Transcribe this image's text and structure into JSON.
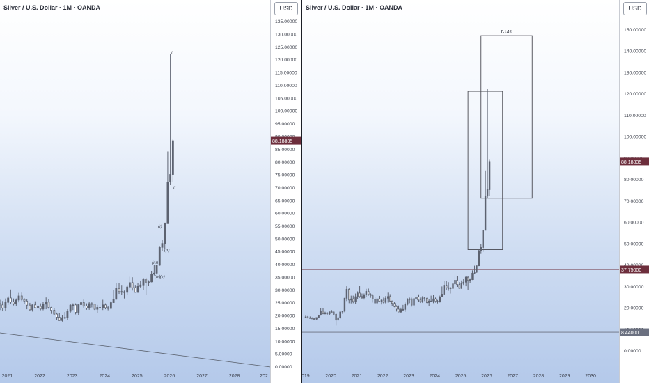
{
  "panes": [
    {
      "title": "Silver / U.S. Dollar · 1M · OANDA",
      "currency": "USD",
      "y_ticks": [
        "0.00000",
        "5.00000",
        "10.00000",
        "15.00000",
        "20.00000",
        "25.00000",
        "30.00000",
        "35.00000",
        "40.00000",
        "45.00000",
        "50.00000",
        "55.00000",
        "60.00000",
        "65.00000",
        "70.00000",
        "75.00000",
        "80.00000",
        "85.00000",
        "90.00000",
        "95.00000",
        "100.00000",
        "105.00000",
        "110.00000",
        "115.00000",
        "120.00000",
        "125.00000",
        "130.00000",
        "135.00000"
      ],
      "x_ticks": [
        "2021",
        "2022",
        "2023",
        "2024",
        "2025",
        "2026",
        "2027",
        "2028",
        "202"
      ],
      "price_label": "88.18835",
      "annotations": [
        "i",
        "ii",
        "(i)",
        "(ii)",
        "(iii)",
        "(iv)",
        "(v)"
      ]
    },
    {
      "title": "Silver / U.S. Dollar · 1M · OANDA",
      "currency": "USD",
      "y_ticks": [
        "0.00000",
        "10.00000",
        "20.00000",
        "30.00000",
        "40.00000",
        "50.00000",
        "60.00000",
        "70.00000",
        "80.00000",
        "90.00000",
        "100.00000",
        "110.00000",
        "120.00000",
        "130.00000",
        "140.00000",
        "150.00000"
      ],
      "x_ticks": [
        "019",
        "2020",
        "2021",
        "2022",
        "2023",
        "2024",
        "2025",
        "2026",
        "2027",
        "2028",
        "2029",
        "2030"
      ],
      "price_label": "88.18835",
      "level_labels": [
        "37.75000",
        "8.44000"
      ],
      "box_label": "T-145"
    }
  ],
  "colors": {
    "candle": "#5c6270",
    "price_tag": "#6d2e3c",
    "level_line": "#6d2e3c",
    "trend_line": "#555b66",
    "box_border": "#4a4a52"
  },
  "chart_data": [
    {
      "type": "candlestick",
      "title": "Silver / U.S. Dollar · 1M · OANDA",
      "ylabel": "USD",
      "ylim": [
        0,
        135
      ],
      "xlim": [
        2020.75,
        2028.95
      ],
      "last_price": 88.18835,
      "series": [
        {
          "name": "",
          "x": [
            2020.75,
            2020.83,
            2020.92,
            2021.0,
            2021.08,
            2021.17,
            2021.25,
            2021.33,
            2021.42,
            2021.5,
            2021.58,
            2021.67,
            2021.75,
            2021.83,
            2021.92,
            2022.0,
            2022.08,
            2022.17,
            2022.25,
            2022.33,
            2022.42,
            2022.5,
            2022.58,
            2022.67,
            2022.75,
            2022.83,
            2022.92,
            2023.0,
            2023.08,
            2023.17,
            2023.25,
            2023.33,
            2023.42,
            2023.5,
            2023.58,
            2023.67,
            2023.75,
            2023.83,
            2023.92,
            2024.0,
            2024.08,
            2024.17,
            2024.25,
            2024.33,
            2024.42,
            2024.5,
            2024.58,
            2024.67,
            2024.75,
            2024.83,
            2024.92,
            2025.0,
            2025.08,
            2025.17,
            2025.25,
            2025.33,
            2025.42,
            2025.5,
            2025.58,
            2025.67,
            2025.75,
            2025.83,
            2025.92,
            2026.0,
            2026.08
          ],
          "open": [
            24.5,
            24.0,
            22.8,
            25.0,
            26.7,
            25.1,
            24.5,
            25.9,
            27.5,
            26.1,
            25.5,
            23.9,
            22.1,
            24.0,
            22.9,
            23.4,
            22.4,
            24.3,
            25.1,
            23.0,
            21.9,
            20.4,
            19.2,
            17.9,
            19.0,
            19.1,
            21.5,
            23.9,
            24.0,
            21.1,
            24.1,
            24.9,
            23.5,
            22.8,
            24.5,
            24.3,
            22.3,
            23.0,
            23.0,
            24.0,
            22.9,
            22.6,
            24.9,
            26.2,
            30.4,
            29.2,
            29.1,
            28.9,
            31.0,
            32.7,
            30.7,
            28.9,
            31.2,
            31.8,
            34.1,
            32.6,
            33.0,
            36.0,
            36.4,
            39.5,
            46.5,
            48.0,
            56.0,
            72.0,
            75.0
          ],
          "high": [
            26.0,
            25.5,
            26.5,
            27.5,
            30.0,
            26.5,
            26.5,
            28.7,
            28.8,
            26.6,
            26.3,
            24.8,
            24.2,
            25.4,
            24.0,
            24.6,
            25.3,
            26.9,
            26.2,
            23.2,
            22.6,
            21.0,
            20.9,
            19.9,
            21.2,
            22.3,
            24.3,
            24.6,
            24.6,
            24.0,
            26.1,
            26.1,
            24.6,
            25.3,
            25.0,
            24.5,
            24.0,
            25.5,
            26.0,
            24.6,
            23.5,
            25.5,
            29.8,
            32.5,
            32.5,
            31.8,
            29.6,
            31.8,
            35.0,
            34.8,
            31.8,
            32.6,
            33.5,
            34.5,
            34.6,
            33.6,
            37.3,
            39.5,
            39.5,
            47.0,
            49.5,
            56.0,
            84.0,
            122.0,
            89.0
          ],
          "low": [
            22.0,
            21.5,
            21.5,
            24.0,
            24.5,
            23.8,
            23.7,
            25.0,
            25.5,
            24.5,
            22.3,
            21.6,
            21.4,
            22.8,
            21.4,
            21.9,
            21.9,
            22.3,
            22.5,
            20.5,
            20.1,
            18.1,
            17.8,
            17.5,
            18.5,
            18.0,
            21.0,
            22.0,
            20.3,
            19.9,
            23.5,
            22.6,
            22.1,
            22.1,
            23.0,
            22.0,
            20.7,
            22.5,
            22.0,
            22.3,
            21.9,
            22.3,
            24.8,
            26.0,
            28.3,
            27.8,
            26.5,
            28.0,
            30.0,
            29.6,
            28.8,
            28.7,
            30.5,
            29.9,
            28.0,
            31.5,
            32.8,
            35.5,
            36.2,
            39.3,
            45.0,
            46.0,
            56.0,
            71.0,
            72.0
          ],
          "close": [
            24.0,
            22.8,
            25.0,
            26.7,
            25.1,
            24.5,
            25.9,
            27.5,
            26.1,
            25.5,
            23.9,
            22.1,
            24.0,
            22.9,
            23.4,
            22.4,
            24.3,
            25.1,
            23.0,
            21.9,
            20.4,
            19.2,
            17.9,
            19.0,
            19.1,
            21.5,
            23.9,
            24.0,
            21.1,
            24.1,
            24.9,
            23.5,
            22.8,
            24.5,
            24.3,
            22.3,
            23.0,
            23.0,
            24.0,
            22.9,
            22.6,
            24.9,
            26.2,
            30.4,
            29.2,
            29.1,
            28.9,
            31.0,
            32.7,
            30.7,
            28.9,
            31.2,
            31.8,
            34.1,
            32.6,
            33.0,
            36.0,
            36.4,
            39.5,
            46.5,
            48.0,
            56.0,
            72.0,
            75.0,
            88.2
          ]
        }
      ]
    },
    {
      "type": "candlestick",
      "title": "Silver / U.S. Dollar · 1M · OANDA",
      "ylabel": "USD",
      "ylim": [
        -5,
        155
      ],
      "xlim": [
        2018.95,
        2031.0
      ],
      "last_price": 88.18835,
      "horizontal_levels": [
        37.75,
        8.44
      ],
      "boxes": [
        {
          "x": [
            2025.25,
            2026.58
          ],
          "y": [
            47.0,
            121.0
          ],
          "label": ""
        },
        {
          "x": [
            2025.75,
            2027.72
          ],
          "y": [
            71.0,
            147.0
          ],
          "label": "T-145"
        }
      ],
      "series": [
        {
          "name": "",
          "x": [
            2019.0,
            2019.08,
            2019.17,
            2019.25,
            2019.33,
            2019.42,
            2019.5,
            2019.58,
            2019.67,
            2019.75,
            2019.83,
            2019.92,
            2020.0,
            2020.08,
            2020.17,
            2020.25,
            2020.33,
            2020.42,
            2020.5,
            2020.58,
            2020.67,
            2020.75,
            2020.83,
            2020.92,
            2021.0,
            2021.08,
            2021.17,
            2021.25,
            2021.33,
            2021.42,
            2021.5,
            2021.58,
            2021.67,
            2021.75,
            2021.83,
            2021.92,
            2022.0,
            2022.08,
            2022.17,
            2022.25,
            2022.33,
            2022.42,
            2022.5,
            2022.58,
            2022.67,
            2022.75,
            2022.83,
            2022.92,
            2023.0,
            2023.08,
            2023.17,
            2023.25,
            2023.33,
            2023.42,
            2023.5,
            2023.58,
            2023.67,
            2023.75,
            2023.83,
            2023.92,
            2024.0,
            2024.08,
            2024.17,
            2024.25,
            2024.33,
            2024.42,
            2024.5,
            2024.58,
            2024.67,
            2024.75,
            2024.83,
            2024.92,
            2025.0,
            2025.08,
            2025.17,
            2025.25,
            2025.33,
            2025.42,
            2025.5,
            2025.58,
            2025.67,
            2025.75,
            2025.83,
            2025.92,
            2026.0,
            2026.08
          ],
          "open": [
            15.5,
            15.6,
            15.2,
            15.0,
            14.8,
            14.6,
            15.3,
            16.4,
            18.3,
            17.0,
            17.5,
            17.0,
            18.0,
            17.9,
            16.8,
            14.1,
            15.2,
            17.9,
            18.3,
            24.3,
            28.5,
            23.5,
            24.0,
            22.8,
            25.0,
            26.7,
            25.1,
            24.5,
            25.9,
            27.5,
            26.1,
            25.5,
            23.9,
            22.1,
            24.0,
            22.9,
            23.4,
            22.4,
            24.3,
            25.1,
            23.0,
            21.9,
            20.4,
            19.2,
            17.9,
            19.0,
            19.1,
            21.5,
            23.9,
            24.0,
            21.1,
            24.1,
            24.9,
            23.5,
            22.8,
            24.5,
            24.3,
            22.3,
            23.0,
            23.0,
            24.0,
            22.9,
            22.6,
            24.9,
            26.2,
            30.4,
            29.2,
            29.1,
            28.9,
            31.0,
            32.7,
            30.7,
            28.9,
            31.2,
            31.8,
            34.1,
            32.6,
            33.0,
            36.0,
            36.4,
            39.5,
            46.5,
            48.0,
            56.0,
            72.0,
            75.0
          ],
          "high": [
            16.2,
            16.0,
            15.8,
            15.4,
            15.0,
            15.4,
            16.6,
            19.6,
            19.6,
            18.0,
            17.8,
            18.0,
            18.8,
            18.2,
            17.5,
            15.5,
            17.9,
            18.5,
            24.5,
            29.9,
            28.9,
            25.5,
            25.5,
            26.5,
            27.5,
            30.0,
            26.5,
            26.5,
            28.7,
            28.8,
            26.6,
            26.3,
            24.8,
            24.2,
            25.4,
            24.0,
            24.6,
            25.3,
            26.9,
            26.2,
            23.2,
            22.6,
            21.0,
            20.9,
            19.9,
            21.2,
            22.3,
            24.3,
            24.6,
            24.6,
            24.0,
            26.1,
            26.1,
            24.6,
            25.3,
            25.0,
            24.5,
            24.0,
            25.5,
            26.0,
            24.6,
            23.5,
            25.5,
            29.8,
            32.5,
            32.5,
            31.8,
            29.6,
            31.8,
            35.0,
            34.8,
            31.8,
            32.6,
            33.5,
            34.5,
            34.6,
            33.6,
            37.3,
            39.5,
            39.5,
            47.0,
            49.5,
            56.0,
            84.0,
            122.0,
            89.0
          ],
          "low": [
            15.0,
            14.9,
            14.8,
            14.7,
            14.3,
            14.3,
            15.0,
            16.2,
            17.0,
            16.8,
            16.6,
            16.5,
            17.4,
            16.5,
            11.6,
            13.9,
            14.9,
            17.0,
            17.8,
            23.0,
            22.0,
            21.9,
            22.0,
            21.5,
            24.0,
            24.5,
            23.8,
            23.7,
            25.0,
            25.5,
            24.5,
            22.3,
            21.6,
            21.4,
            22.8,
            21.4,
            21.9,
            21.9,
            22.3,
            22.5,
            20.5,
            20.1,
            18.1,
            17.8,
            17.5,
            18.5,
            18.0,
            21.0,
            22.0,
            20.3,
            19.9,
            23.5,
            22.6,
            22.1,
            22.1,
            23.0,
            22.0,
            20.7,
            22.5,
            22.0,
            22.3,
            21.9,
            22.3,
            24.8,
            26.0,
            28.3,
            27.8,
            26.5,
            28.0,
            30.0,
            29.6,
            28.8,
            28.7,
            30.5,
            29.9,
            28.0,
            31.5,
            32.8,
            35.5,
            36.2,
            39.3,
            45.0,
            46.0,
            56.0,
            71.0,
            72.0
          ],
          "close": [
            15.6,
            15.2,
            15.0,
            14.8,
            14.6,
            15.3,
            16.4,
            18.3,
            17.0,
            17.5,
            17.0,
            18.0,
            17.9,
            16.8,
            14.1,
            15.2,
            17.9,
            18.3,
            24.3,
            28.5,
            23.5,
            24.0,
            22.8,
            25.0,
            26.7,
            25.1,
            24.5,
            25.9,
            27.5,
            26.1,
            25.5,
            23.9,
            22.1,
            24.0,
            22.9,
            23.4,
            22.4,
            24.3,
            25.1,
            23.0,
            21.9,
            20.4,
            19.2,
            17.9,
            19.0,
            19.1,
            21.5,
            23.9,
            24.0,
            21.1,
            24.1,
            24.9,
            23.5,
            22.8,
            24.5,
            24.3,
            22.3,
            23.0,
            23.0,
            24.0,
            22.9,
            22.6,
            24.9,
            26.2,
            30.4,
            29.2,
            29.1,
            28.9,
            31.0,
            32.7,
            30.7,
            28.9,
            31.2,
            31.8,
            34.1,
            32.6,
            33.0,
            36.0,
            36.4,
            39.5,
            46.5,
            48.0,
            56.0,
            72.0,
            75.0,
            88.2
          ]
        }
      ]
    }
  ]
}
